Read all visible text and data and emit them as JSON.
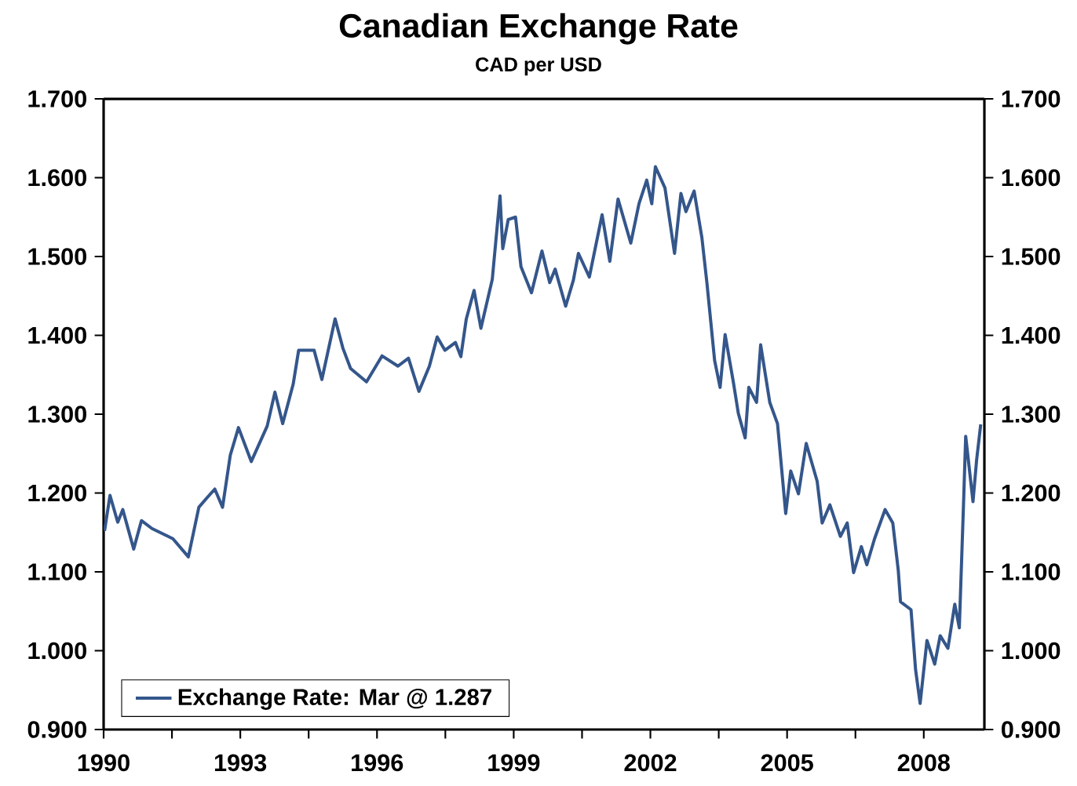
{
  "chart_data": {
    "type": "line",
    "title": "Canadian Exchange Rate",
    "subtitle": "CAD per USD",
    "x": [
      1990.02,
      1990.14,
      1990.31,
      1990.42,
      1990.66,
      1990.83,
      1991.06,
      1991.52,
      1991.86,
      1992.09,
      1992.27,
      1992.44,
      1992.61,
      1992.78,
      1992.96,
      1993.24,
      1993.59,
      1993.76,
      1993.93,
      1994.16,
      1994.28,
      1994.62,
      1994.79,
      1995.08,
      1995.25,
      1995.42,
      1995.77,
      1996.11,
      1996.46,
      1996.69,
      1996.92,
      1997.15,
      1997.32,
      1997.49,
      1997.72,
      1997.84,
      1997.96,
      1998.13,
      1998.28,
      1998.53,
      1998.7,
      1998.76,
      1998.88,
      1999.04,
      1999.16,
      1999.39,
      1999.62,
      1999.79,
      1999.91,
      2000.14,
      2000.31,
      2000.42,
      2000.66,
      2000.94,
      2001.11,
      2001.29,
      2001.57,
      2001.75,
      2001.92,
      2002.03,
      2002.11,
      2002.32,
      2002.53,
      2002.67,
      2002.78,
      2002.96,
      2003.13,
      2003.24,
      2003.41,
      2003.53,
      2003.64,
      2003.82,
      2003.93,
      2004.08,
      2004.16,
      2004.33,
      2004.42,
      2004.62,
      2004.79,
      2004.97,
      2005.08,
      2005.25,
      2005.42,
      2005.66,
      2005.77,
      2005.94,
      2006.17,
      2006.32,
      2006.46,
      2006.63,
      2006.75,
      2006.92,
      2007.15,
      2007.32,
      2007.44,
      2007.49,
      2007.72,
      2007.82,
      2007.92,
      2008.07,
      2008.24,
      2008.36,
      2008.53,
      2008.68,
      2008.78,
      2008.87,
      2008.92,
      2009.08,
      2009.16,
      2009.25
    ],
    "series": [
      {
        "name": "Exchange Rate: Mar @ 1.287",
        "color": "#34568b",
        "values": [
          1.152,
          1.197,
          1.163,
          1.179,
          1.129,
          1.165,
          1.155,
          1.142,
          1.119,
          1.182,
          1.194,
          1.205,
          1.182,
          1.248,
          1.283,
          1.24,
          1.285,
          1.328,
          1.288,
          1.338,
          1.381,
          1.381,
          1.344,
          1.421,
          1.384,
          1.358,
          1.341,
          1.374,
          1.361,
          1.371,
          1.329,
          1.361,
          1.398,
          1.381,
          1.391,
          1.373,
          1.421,
          1.457,
          1.409,
          1.471,
          1.577,
          1.51,
          1.547,
          1.55,
          1.487,
          1.454,
          1.507,
          1.467,
          1.484,
          1.437,
          1.47,
          1.504,
          1.474,
          1.553,
          1.494,
          1.573,
          1.517,
          1.567,
          1.597,
          1.567,
          1.614,
          1.587,
          1.504,
          1.58,
          1.557,
          1.583,
          1.524,
          1.467,
          1.368,
          1.334,
          1.401,
          1.341,
          1.301,
          1.27,
          1.334,
          1.315,
          1.388,
          1.315,
          1.288,
          1.174,
          1.228,
          1.199,
          1.263,
          1.215,
          1.162,
          1.185,
          1.145,
          1.162,
          1.099,
          1.132,
          1.109,
          1.142,
          1.179,
          1.162,
          1.102,
          1.062,
          1.052,
          0.976,
          0.933,
          1.013,
          0.983,
          1.019,
          1.003,
          1.059,
          1.029,
          1.182,
          1.272,
          1.189,
          1.242,
          1.287
        ]
      }
    ],
    "xlim": [
      1990,
      2009.33
    ],
    "xticks": [
      1990,
      {
        "value": 1991.5,
        "label": null
      },
      1993,
      {
        "value": 1994.5,
        "label": null
      },
      1996,
      {
        "value": 1997.5,
        "label": null
      },
      1999,
      {
        "value": 2000.5,
        "label": null
      },
      2002,
      {
        "value": 2003.5,
        "label": null
      },
      2005,
      {
        "value": 2006.5,
        "label": null
      },
      2008
    ],
    "ylim": [
      0.9,
      1.7
    ],
    "yticks": [
      {
        "value": 0.9,
        "label": "0.900"
      },
      {
        "value": 1.0,
        "label": "1.000"
      },
      {
        "value": 1.1,
        "label": "1.100"
      },
      {
        "value": 1.2,
        "label": "1.200"
      },
      {
        "value": 1.3,
        "label": "1.300"
      },
      {
        "value": 1.4,
        "label": "1.400"
      },
      {
        "value": 1.5,
        "label": "1.500"
      },
      {
        "value": 1.6,
        "label": "1.600"
      },
      {
        "value": 1.7,
        "label": "1.700"
      }
    ],
    "y2lim": [
      0.9,
      1.7
    ],
    "y2ticks": [
      {
        "value": 0.9,
        "label": "0.900"
      },
      {
        "value": 1.0,
        "label": "1.000"
      },
      {
        "value": 1.1,
        "label": "1.100"
      },
      {
        "value": 1.2,
        "label": "1.200"
      },
      {
        "value": 1.3,
        "label": "1.300"
      },
      {
        "value": 1.4,
        "label": "1.400"
      },
      {
        "value": 1.5,
        "label": "1.500"
      },
      {
        "value": 1.6,
        "label": "1.600"
      },
      {
        "value": 1.7,
        "label": "1.700"
      }
    ],
    "legend": "bottom left",
    "line_style": "solid"
  }
}
